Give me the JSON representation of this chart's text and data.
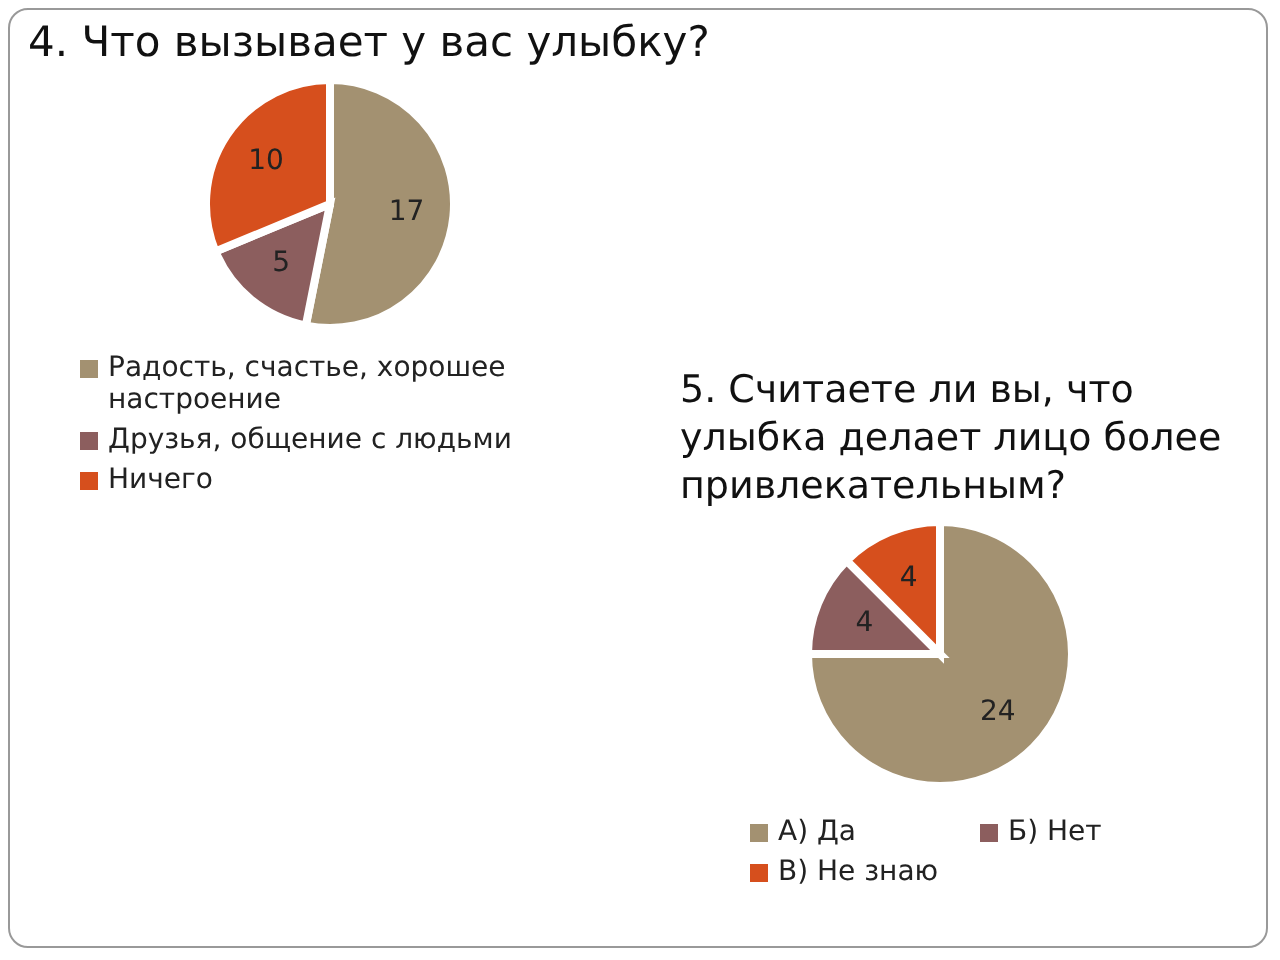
{
  "chart_data": [
    {
      "type": "pie",
      "title": "4. Что вызывает у вас улыбку?",
      "categories": [
        "Радость, счастье, хорошее настроение",
        "Друзья, общение с людьми",
        "Ничего"
      ],
      "values": [
        17,
        5,
        10
      ],
      "colors": [
        "#a39171",
        "#8c5e5e",
        "#d64f1d"
      ],
      "data_labels": true,
      "legend": "bottom"
    },
    {
      "type": "pie",
      "title": "5. Считаете ли вы, что улыбка делает лицо более привлекательным?",
      "categories": [
        "А) Да",
        "Б) Нет",
        "В) Не знаю"
      ],
      "values": [
        24,
        4,
        4
      ],
      "colors": [
        "#a39171",
        "#8c5e5e",
        "#d64f1d"
      ],
      "data_labels": true,
      "legend": "bottom"
    }
  ]
}
